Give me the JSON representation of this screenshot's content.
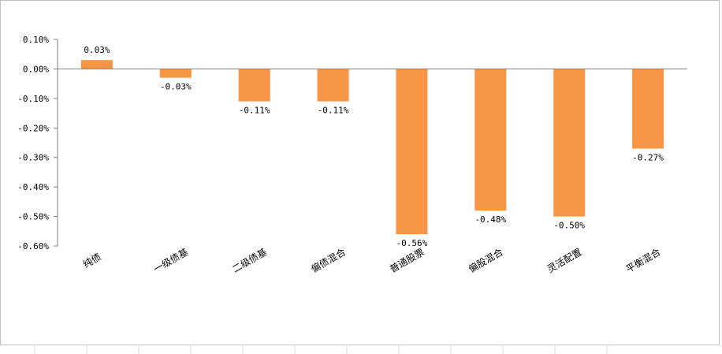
{
  "chart_data": {
    "type": "bar",
    "categories": [
      "纯债",
      "一级债基",
      "二级债基",
      "偏债混合",
      "普通股票",
      "偏股混合",
      "灵活配置",
      "平衡混合"
    ],
    "values": [
      0.03,
      -0.03,
      -0.11,
      -0.11,
      -0.56,
      -0.48,
      -0.5,
      -0.27
    ],
    "data_labels": [
      "0.03%",
      "-0.03%",
      "-0.11%",
      "-0.11%",
      "-0.56%",
      "-0.48%",
      "-0.50%",
      "-0.27%"
    ],
    "y_ticks": [
      "0.10%",
      "0.00%",
      "-0.10%",
      "-0.20%",
      "-0.30%",
      "-0.40%",
      "-0.50%",
      "-0.60%"
    ],
    "y_tick_values": [
      0.1,
      0.0,
      -0.1,
      -0.2,
      -0.3,
      -0.4,
      -0.5,
      -0.6
    ],
    "ylim": [
      -0.6,
      0.1
    ],
    "title": "",
    "xlabel": "",
    "ylabel": "",
    "grid": false,
    "bar_color": "#F79646"
  }
}
